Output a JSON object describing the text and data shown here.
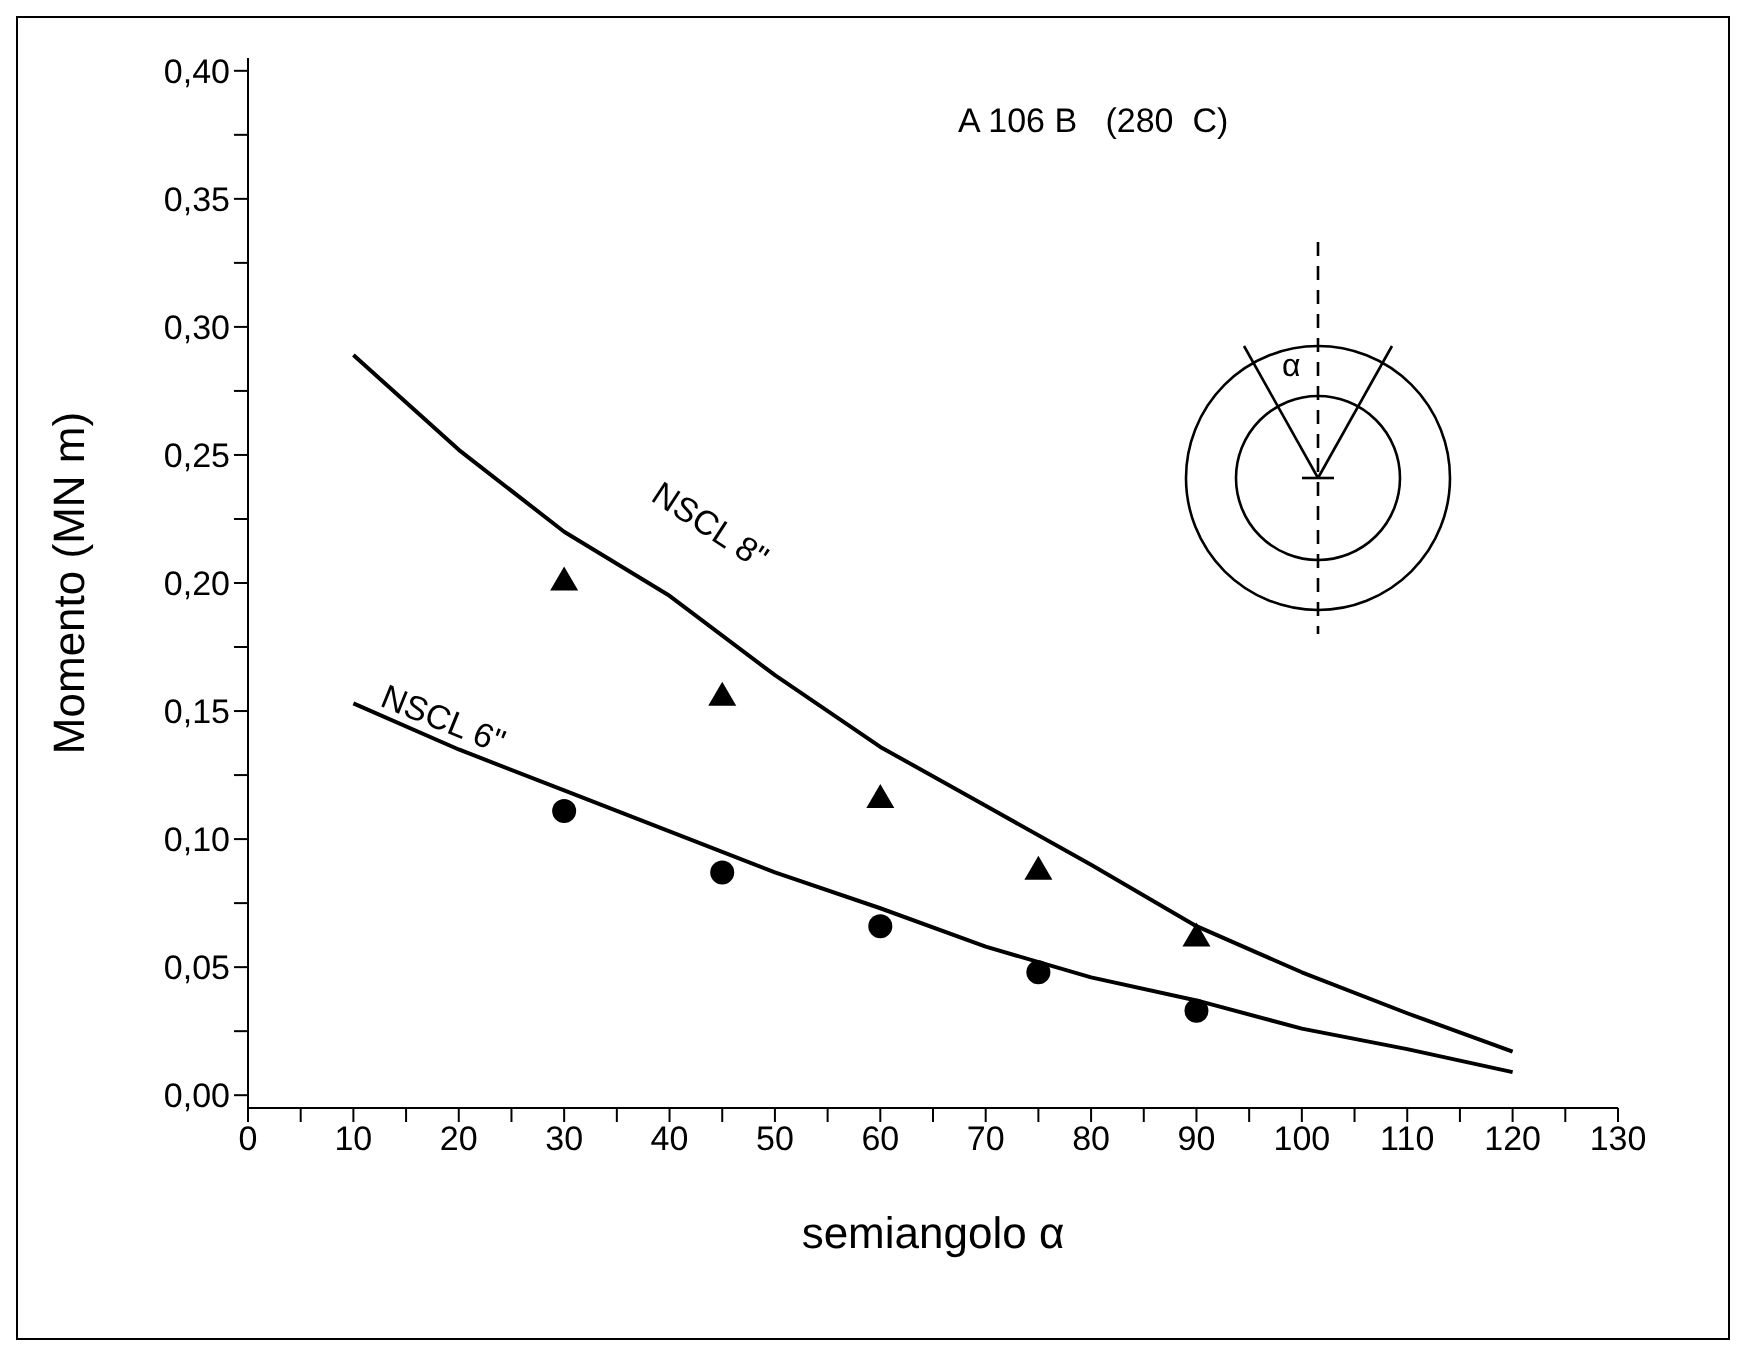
{
  "chart_data": {
    "type": "line",
    "xlabel": "semiangolo α",
    "ylabel": "Momento (MN m)",
    "xlim": [
      0,
      130
    ],
    "ylim": [
      -0.005,
      0.405
    ],
    "xticks": [
      0,
      {
        "value": 5,
        "label": null
      },
      10,
      {
        "value": 15,
        "label": null
      },
      20,
      {
        "value": 25,
        "label": null
      },
      30,
      {
        "value": 35,
        "label": null
      },
      40,
      {
        "value": 45,
        "label": null
      },
      50,
      {
        "value": 55,
        "label": null
      },
      60,
      {
        "value": 65,
        "label": null
      },
      70,
      {
        "value": 75,
        "label": null
      },
      80,
      {
        "value": 85,
        "label": null
      },
      90,
      {
        "value": 95,
        "label": null
      },
      100,
      {
        "value": 105,
        "label": null
      },
      110,
      {
        "value": 115,
        "label": null
      },
      120,
      {
        "value": 125,
        "label": null
      },
      130
    ],
    "yticks": [
      {
        "value": 0,
        "label": "0,00"
      },
      {
        "value": 0.025,
        "label": null
      },
      {
        "value": 0.05,
        "label": "0,05"
      },
      {
        "value": 0.075,
        "label": null
      },
      {
        "value": 0.1,
        "label": "0,10"
      },
      {
        "value": 0.125,
        "label": null
      },
      {
        "value": 0.15,
        "label": "0,15"
      },
      {
        "value": 0.175,
        "label": null
      },
      {
        "value": 0.2,
        "label": "0,20"
      },
      {
        "value": 0.225,
        "label": null
      },
      {
        "value": 0.25,
        "label": "0,25"
      },
      {
        "value": 0.275,
        "label": null
      },
      {
        "value": 0.3,
        "label": "0,30"
      },
      {
        "value": 0.325,
        "label": null
      },
      {
        "value": 0.35,
        "label": "0,35"
      },
      {
        "value": 0.375,
        "label": null
      },
      {
        "value": 0.4,
        "label": "0,40"
      }
    ],
    "grid": false,
    "legend": false,
    "annotations": [
      "A 106 B   (280  C)",
      "α"
    ],
    "series": [
      {
        "name": "NSCL 8\"",
        "color": "#000000",
        "marker": "none",
        "line_style": "solid",
        "x": [
          10,
          20,
          30,
          40,
          50,
          60,
          70,
          80,
          90,
          100,
          110,
          120
        ],
        "values": [
          0.289,
          0.252,
          0.22,
          0.195,
          0.164,
          0.136,
          0.113,
          0.09,
          0.066,
          0.048,
          0.032,
          0.017
        ]
      },
      {
        "name": "NSCL 6\"",
        "color": "#000000",
        "marker": "none",
        "line_style": "solid",
        "x": [
          10,
          20,
          30,
          40,
          50,
          60,
          70,
          80,
          90,
          100,
          110,
          120
        ],
        "values": [
          0.153,
          0.135,
          0.119,
          0.103,
          0.087,
          0.073,
          0.058,
          0.046,
          0.037,
          0.026,
          0.018,
          0.009
        ]
      },
      {
        "type": "scatter",
        "color": "#000000",
        "marker": "triangle",
        "x": [
          30,
          45,
          60,
          75,
          90
        ],
        "values": [
          0.201,
          0.156,
          0.116,
          0.088,
          0.062
        ]
      },
      {
        "type": "scatter",
        "color": "#000000",
        "marker": "circle",
        "x": [
          30,
          45,
          60,
          75,
          90
        ],
        "values": [
          0.111,
          0.087,
          0.066,
          0.048,
          0.033
        ]
      }
    ]
  }
}
